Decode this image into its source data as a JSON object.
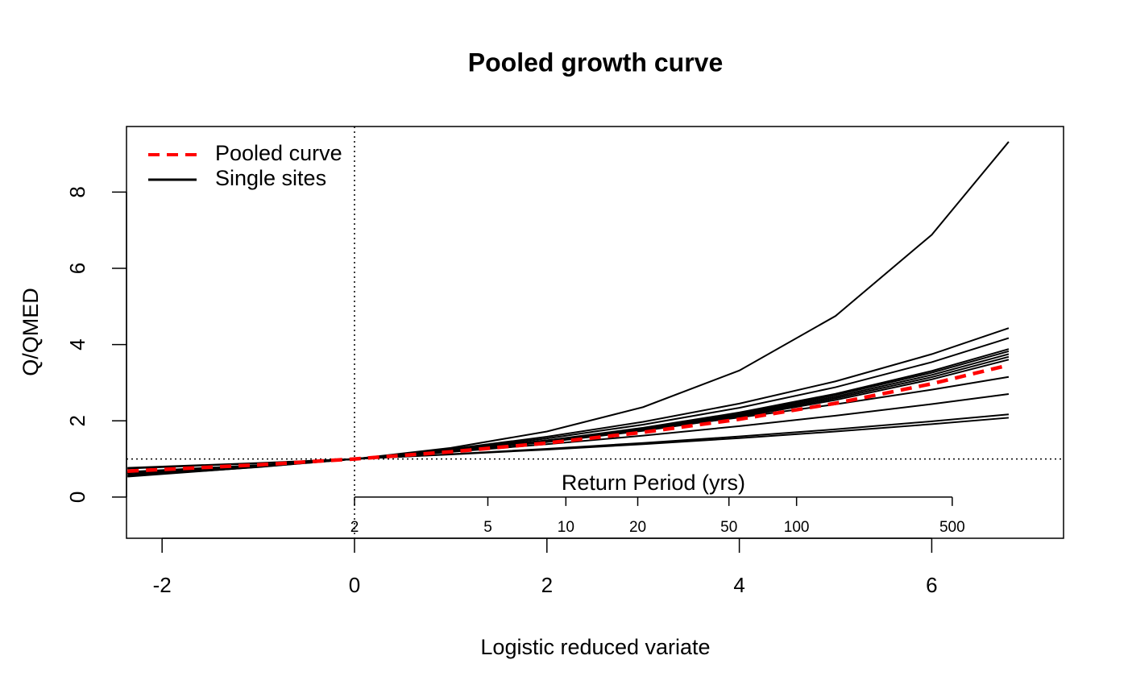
{
  "chart_data": {
    "type": "line",
    "title": "Pooled growth curve",
    "x_label": "Logistic reduced variate",
    "y_label": "Q/QMED",
    "x": [
      -2.36,
      -1,
      0,
      1,
      2,
      3,
      4,
      5,
      6,
      6.8
    ],
    "xlim": [
      -2.37,
      7.37
    ],
    "ylim": [
      -1.08,
      9.72
    ],
    "xticks": [
      -2,
      0,
      2,
      4,
      6
    ],
    "yticks": [
      0,
      2,
      4,
      6,
      8
    ],
    "vline": 0,
    "hline": 1,
    "return_period_label": "Return Period (yrs)",
    "return_period_ticks": [
      {
        "value": 0,
        "label": "2"
      },
      {
        "value": 1.386,
        "label": "5"
      },
      {
        "value": 2.197,
        "label": "10"
      },
      {
        "value": 2.944,
        "label": "20"
      },
      {
        "value": 3.892,
        "label": "50"
      },
      {
        "value": 4.595,
        "label": "100"
      },
      {
        "value": 6.213,
        "label": "500"
      }
    ],
    "legend": "topleft",
    "series": [
      {
        "name": "Pooled curve",
        "color": "#ff0000",
        "dashed": true,
        "values": [
          0.68,
          0.846,
          1,
          1.188,
          1.418,
          1.699,
          2.042,
          2.46,
          2.972,
          3.462
        ]
      },
      {
        "name": "Single sites",
        "color": "#000000",
        "dashed": false,
        "lines": [
          [
            0.64,
            0.81,
            1,
            1.29,
            1.72,
            2.36,
            3.32,
            4.75,
            6.88,
            9.32
          ],
          [
            0.554,
            0.785,
            1,
            1.262,
            1.583,
            1.974,
            2.452,
            3.036,
            3.749,
            4.432
          ],
          [
            0.588,
            0.802,
            1,
            1.242,
            1.539,
            1.9,
            2.342,
            2.881,
            3.54,
            4.171
          ],
          [
            0.626,
            0.82,
            1,
            1.22,
            1.489,
            1.818,
            2.219,
            2.71,
            3.308,
            3.882
          ],
          [
            0.633,
            0.823,
            1,
            1.216,
            1.48,
            1.802,
            2.195,
            2.675,
            3.262,
            3.824
          ],
          [
            0.643,
            0.828,
            1,
            1.21,
            1.467,
            1.781,
            2.164,
            2.632,
            3.204,
            3.751
          ],
          [
            0.652,
            0.832,
            1,
            1.205,
            1.455,
            1.761,
            2.134,
            2.589,
            3.146,
            3.679
          ],
          [
            0.661,
            0.837,
            1,
            1.199,
            1.443,
            1.74,
            2.103,
            2.546,
            3.088,
            3.606
          ],
          [
            0.536,
            0.79,
            1,
            1.232,
            1.489,
            1.773,
            2.087,
            2.434,
            2.817,
            3.152
          ],
          [
            0.633,
            0.833,
            1,
            1.184,
            1.387,
            1.612,
            1.861,
            2.135,
            2.439,
            2.704
          ],
          [
            0.748,
            0.886,
            1,
            1.126,
            1.266,
            1.42,
            1.59,
            1.778,
            1.987,
            2.169
          ],
          [
            0.767,
            0.894,
            1,
            1.117,
            1.246,
            1.388,
            1.546,
            1.72,
            1.913,
            2.081
          ]
        ]
      }
    ]
  }
}
